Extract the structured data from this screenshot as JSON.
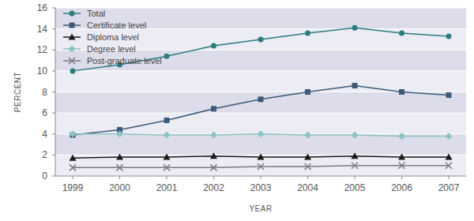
{
  "chart_data": {
    "type": "line",
    "x_label": "YEAR",
    "y_label": "PERCENT",
    "categories": [
      "1999",
      "2000",
      "2001",
      "2002",
      "2003",
      "2004",
      "2005",
      "2006",
      "2007"
    ],
    "series": [
      {
        "name": "Total",
        "color": "#2b7c80",
        "marker": "circle",
        "values": [
          10.0,
          10.6,
          11.4,
          12.4,
          13.0,
          13.6,
          14.1,
          13.6,
          13.3
        ]
      },
      {
        "name": "Certificate level",
        "color": "#3d5a78",
        "marker": "square",
        "values": [
          3.9,
          4.4,
          5.3,
          6.4,
          7.3,
          8.0,
          8.6,
          8.0,
          7.7
        ]
      },
      {
        "name": "Diploma level",
        "color": "#1a1a1a",
        "marker": "triangle",
        "values": [
          1.7,
          1.8,
          1.8,
          1.9,
          1.8,
          1.8,
          1.9,
          1.8,
          1.8
        ]
      },
      {
        "name": "Degree level",
        "color": "#8cc3c3",
        "marker": "diamond",
        "values": [
          4.0,
          4.0,
          3.9,
          3.9,
          4.0,
          3.9,
          3.9,
          3.8,
          3.8
        ]
      },
      {
        "name": "Post-graduate level",
        "color": "#7a7a80",
        "marker": "x",
        "values": [
          0.8,
          0.8,
          0.8,
          0.8,
          0.9,
          0.9,
          1.0,
          1.0,
          1.0
        ]
      }
    ],
    "ylim": [
      0,
      16
    ],
    "yticks": [
      0,
      2,
      4,
      6,
      8,
      10,
      12,
      14,
      16
    ],
    "grid": true,
    "legend": "top-left"
  }
}
